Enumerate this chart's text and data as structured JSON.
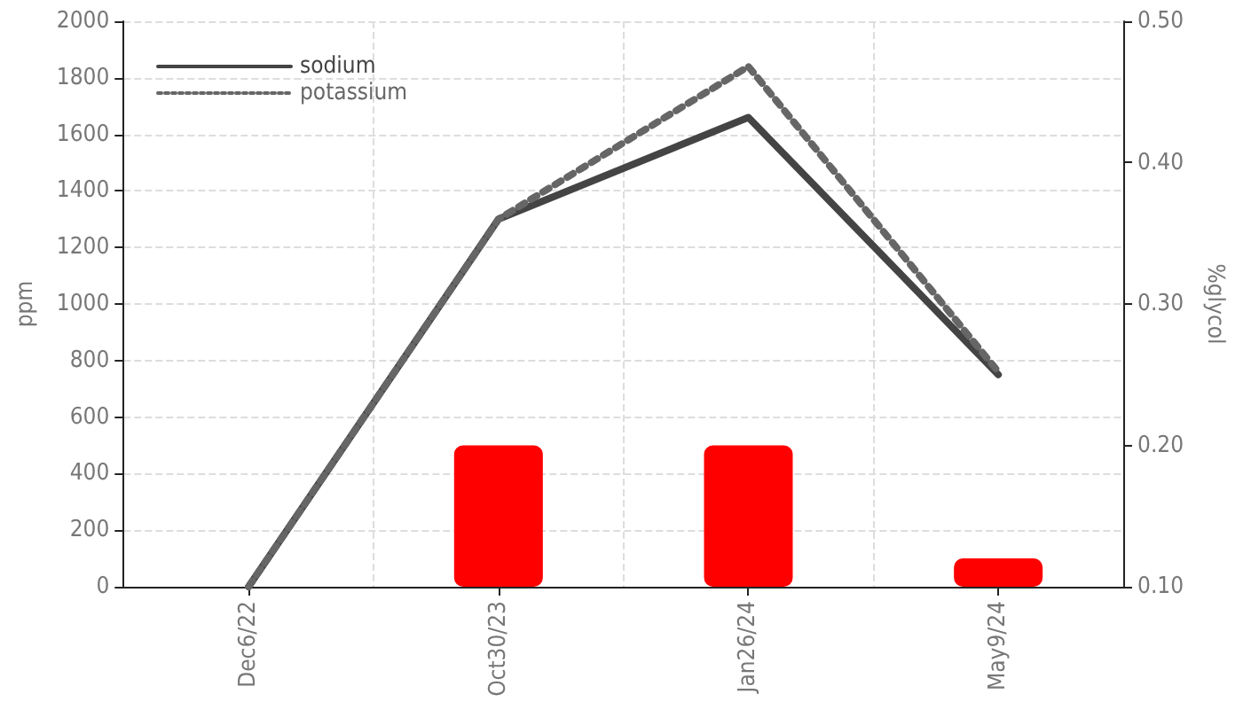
{
  "chart_data": {
    "type": "line",
    "ylabel": "ppm",
    "y2label": "%glycol",
    "categories": [
      "Dec6/22",
      "Oct30/23",
      "Jan26/24",
      "May9/24"
    ],
    "series": [
      {
        "name": "sodium",
        "color": "#444444",
        "values": [
          0,
          1300,
          1660,
          750
        ],
        "line_style": "solid"
      },
      {
        "name": "potassium",
        "color": "#666666",
        "values": [
          0,
          1300,
          1840,
          760
        ],
        "line_style": "dotted"
      },
      {
        "type": "bar",
        "axis": "y2",
        "color": "#ff0000",
        "values": [
          null,
          0.2,
          0.2,
          0.12
        ]
      }
    ],
    "ylim": [
      0,
      2000
    ],
    "yticks": [
      0,
      200,
      400,
      600,
      800,
      1000,
      1200,
      1400,
      1600,
      1800,
      2000
    ],
    "y2lim": [
      0.1,
      0.5
    ],
    "y2ticks": [
      {
        "value": 0.1,
        "label": "0.10"
      },
      {
        "value": 0.2,
        "label": "0.20"
      },
      {
        "value": 0.3,
        "label": "0.30"
      },
      {
        "value": 0.4,
        "label": "0.40"
      },
      {
        "value": 0.5,
        "label": "0.50"
      }
    ],
    "grid": true,
    "legend": "top left",
    "marker": "none"
  }
}
